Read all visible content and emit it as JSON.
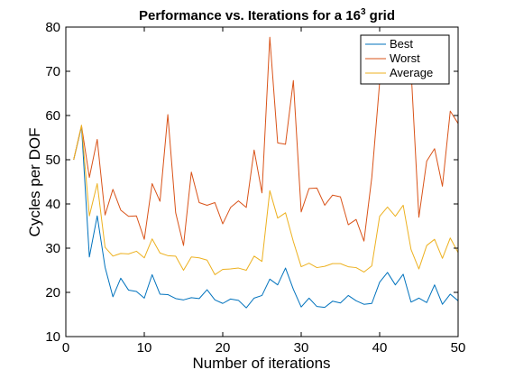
{
  "chart_data": {
    "type": "line",
    "title": "Performance vs. Iterations for a 16",
    "title_superscript": "3",
    "title_suffix": " grid",
    "xlabel": "Number of iterations",
    "ylabel": "Cycles per DOF",
    "xlim": [
      0,
      50
    ],
    "ylim": [
      10,
      80
    ],
    "xticks": [
      0,
      10,
      20,
      30,
      40,
      50
    ],
    "yticks": [
      10,
      20,
      30,
      40,
      50,
      60,
      70,
      80
    ],
    "grid": false,
    "legend_position": "top-right",
    "x": [
      1,
      2,
      3,
      4,
      5,
      6,
      7,
      8,
      9,
      10,
      11,
      12,
      13,
      14,
      15,
      16,
      17,
      18,
      19,
      20,
      21,
      22,
      23,
      24,
      25,
      26,
      27,
      28,
      29,
      30,
      31,
      32,
      33,
      34,
      35,
      36,
      37,
      38,
      39,
      40,
      41,
      42,
      43,
      44,
      45,
      46,
      47,
      48,
      49,
      50
    ],
    "series": [
      {
        "name": "Best",
        "color": "#0072BD",
        "values": [
          50.0,
          57.5,
          28.0,
          37.3,
          25.7,
          19.0,
          23.2,
          20.5,
          20.2,
          18.7,
          24.0,
          19.6,
          19.5,
          18.6,
          18.3,
          18.8,
          18.6,
          20.6,
          18.3,
          17.5,
          18.5,
          18.2,
          16.5,
          18.7,
          19.3,
          23.0,
          21.7,
          25.5,
          20.7,
          16.7,
          18.7,
          16.8,
          16.6,
          18.0,
          17.6,
          19.3,
          18.1,
          17.3,
          17.5,
          22.3,
          24.5,
          21.7,
          24.1,
          17.8,
          18.7,
          17.7,
          21.7,
          17.3,
          19.6,
          18.1
        ]
      },
      {
        "name": "Worst",
        "color": "#D95319",
        "values": [
          50.0,
          57.7,
          46.0,
          54.6,
          37.5,
          43.3,
          38.6,
          37.2,
          37.3,
          32.0,
          44.6,
          40.6,
          60.2,
          38.0,
          30.6,
          47.2,
          40.3,
          39.7,
          40.3,
          35.5,
          39.2,
          40.7,
          39.2,
          52.2,
          42.5,
          77.7,
          53.8,
          53.5,
          67.9,
          38.2,
          43.5,
          43.6,
          39.7,
          42.0,
          41.6,
          35.3,
          36.5,
          31.6,
          46.0,
          67.5,
          70.5,
          71.0,
          72.5,
          70.5,
          37.0,
          49.7,
          52.5,
          44.0,
          61.0,
          58.2
        ]
      },
      {
        "name": "Average",
        "color": "#EDB120",
        "values": [
          50.0,
          57.8,
          37.3,
          44.6,
          30.2,
          28.2,
          28.8,
          28.7,
          29.3,
          27.8,
          32.1,
          28.9,
          28.3,
          28.2,
          25.0,
          28.0,
          27.8,
          27.3,
          24.0,
          25.2,
          25.3,
          25.5,
          25.0,
          28.2,
          27.0,
          43.0,
          36.8,
          38.0,
          31.5,
          25.8,
          26.6,
          25.6,
          25.9,
          26.5,
          26.5,
          25.8,
          25.6,
          24.6,
          26.0,
          37.2,
          39.3,
          37.2,
          39.7,
          29.7,
          25.3,
          30.6,
          32.0,
          27.7,
          32.3,
          29.0
        ]
      }
    ]
  }
}
